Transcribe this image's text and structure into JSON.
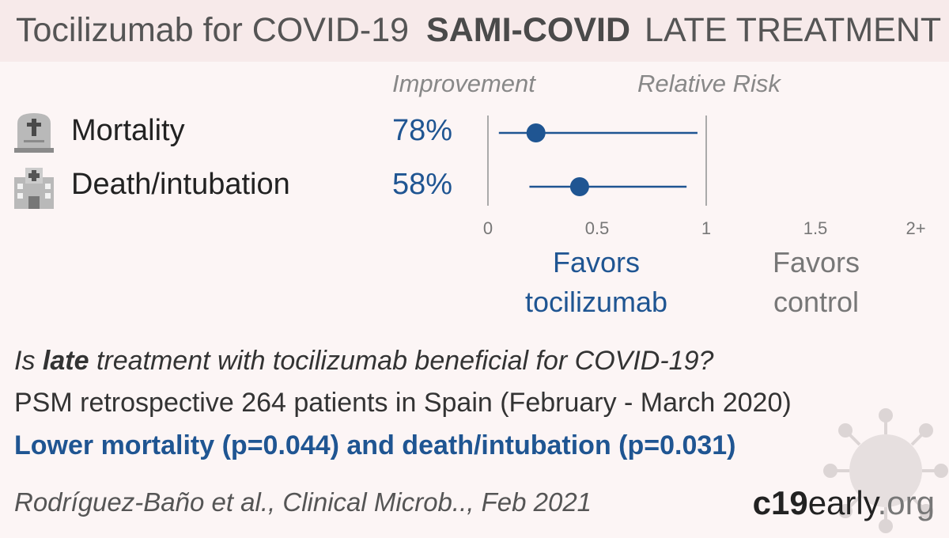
{
  "header": {
    "title": "Tocilizumab for COVID-19",
    "study": "SAMI-COVID",
    "stage": "LATE TREATMENT"
  },
  "columns": {
    "improvement": "Improvement",
    "relative_risk": "Relative Risk"
  },
  "outcomes": [
    {
      "label": "Mortality",
      "improvement": "78%",
      "icon": "tombstone-icon"
    },
    {
      "label": "Death/intubation",
      "improvement": "58%",
      "icon": "hospital-icon"
    }
  ],
  "favors": {
    "left_line1": "Favors",
    "left_line2": "tocilizumab",
    "right_line1": "Favors",
    "right_line2": "control"
  },
  "question": {
    "pre": "Is ",
    "emphasis": "late",
    "post": " treatment with tocilizumab beneficial for COVID-19?"
  },
  "design": "PSM retrospective 264 patients in Spain (February - March 2020)",
  "conclusion": "Lower mortality (p=0.044) and death/intubation (p=0.031)",
  "citation": "Rodríguez-Baño et al., Clinical Microb.., Feb 2021",
  "brand": {
    "part1": "c19",
    "part2": "early",
    "part3": ".org"
  },
  "colors": {
    "accent": "#1f5592",
    "axis": "#aaaaaa",
    "header_bg": "#f7eaea",
    "background": "#fcf5f5"
  },
  "chart_data": {
    "type": "forest",
    "xlabel": "Relative Risk",
    "xlim": [
      0,
      2
    ],
    "ticks": [
      {
        "value": 0,
        "label": "0"
      },
      {
        "value": 0.5,
        "label": "0.5"
      },
      {
        "value": 1,
        "label": "1"
      },
      {
        "value": 1.5,
        "label": "1.5"
      },
      {
        "value": 2,
        "label": "2+"
      }
    ],
    "reference_line": 1,
    "series": [
      {
        "name": "Mortality",
        "rr": 0.22,
        "ci_low": 0.05,
        "ci_high": 0.96
      },
      {
        "name": "Death/intubation",
        "rr": 0.42,
        "ci_low": 0.19,
        "ci_high": 0.91
      }
    ]
  }
}
